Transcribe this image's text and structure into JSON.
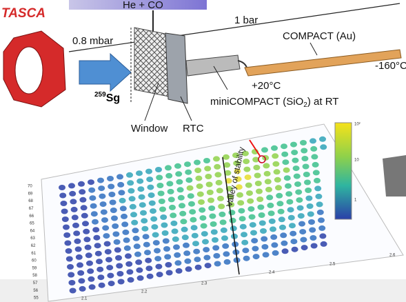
{
  "labels": {
    "tasca": "TASCA",
    "gas": "He + CO",
    "pressure_high": "1 bar",
    "pressure_low": "0.8 mbar",
    "compact": "COMPACT (Au)",
    "temp_cold": "-160°C",
    "temp_warm": "+20°C",
    "mini_compact": {
      "before": "miniCOMPACT (SiO",
      "sub": "2",
      "after": ") at RT"
    },
    "isotope": {
      "mass": "259",
      "element": "Sg"
    },
    "window": "Window",
    "rtc": "RTC"
  },
  "chart": {
    "annotation": "Valley of stability",
    "y_tick_labels": [
      "70",
      "69",
      "68",
      "67",
      "66",
      "65",
      "64",
      "63",
      "62",
      "61",
      "60",
      "59",
      "58",
      "57",
      "56",
      "55"
    ],
    "x_tick_labels": [
      "2.1",
      "2.2",
      "2.3",
      "2.4",
      "2.5",
      "2.6"
    ],
    "colorbar_labels": [
      "10²",
      "10",
      "1"
    ]
  }
}
